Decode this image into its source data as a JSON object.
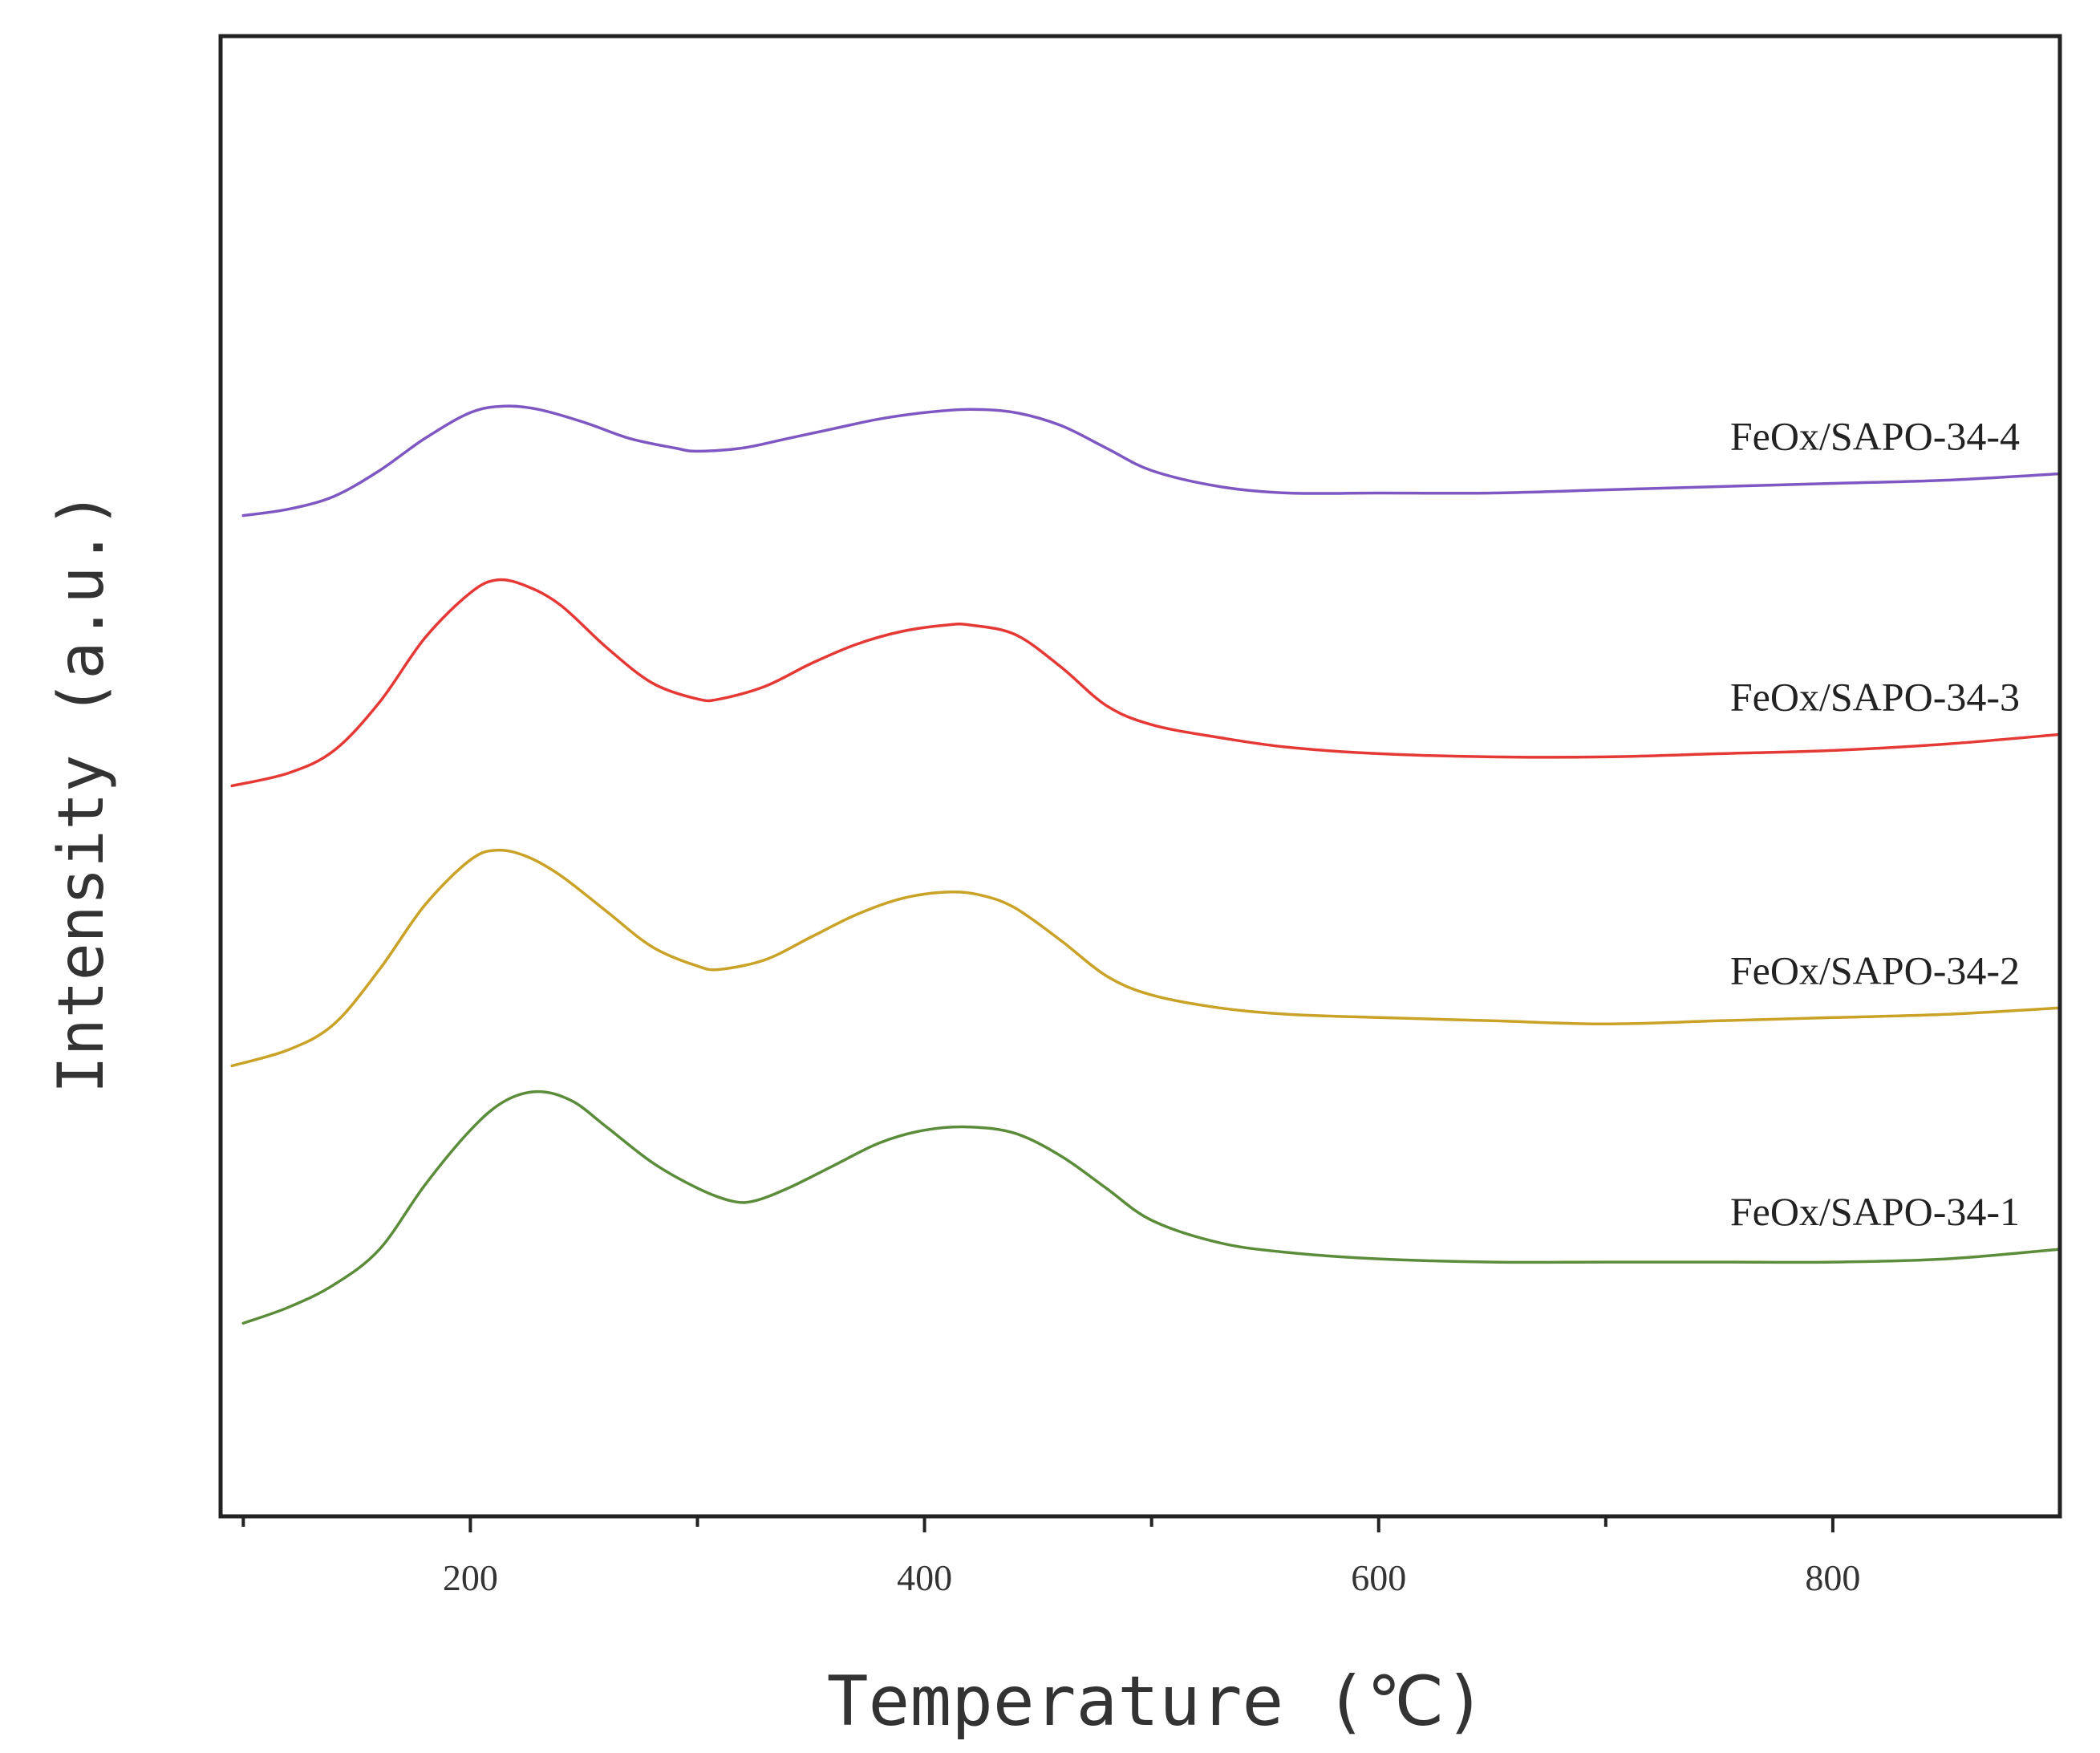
{
  "chart_data": {
    "type": "line",
    "title": "",
    "xlabel": "Temperature (℃)",
    "ylabel": "Intensity (a.u.)",
    "xlim": [
      90,
      900
    ],
    "ylim": [
      -0.25,
      4.35
    ],
    "xticks": [
      200,
      400,
      600,
      800
    ],
    "minor_xticks": [
      100,
      300,
      500,
      700
    ],
    "grid": false,
    "legend": "inline labels at right end of each curve",
    "series": [
      {
        "name": "FeOx/SAPO-34-4",
        "color": "#7e57c2",
        "x": [
          100,
          120,
          140,
          160,
          180,
          200,
          215,
          230,
          250,
          270,
          290,
          300,
          320,
          340,
          360,
          380,
          400,
          420,
          440,
          460,
          480,
          500,
          530,
          560,
          600,
          650,
          700,
          750,
          800,
          850,
          900
        ],
        "y": [
          2.86,
          2.88,
          2.92,
          3.0,
          3.1,
          3.18,
          3.2,
          3.19,
          3.15,
          3.1,
          3.07,
          3.06,
          3.07,
          3.1,
          3.13,
          3.16,
          3.18,
          3.19,
          3.18,
          3.14,
          3.07,
          3.0,
          2.95,
          2.93,
          2.93,
          2.93,
          2.94,
          2.95,
          2.96,
          2.97,
          2.99
        ]
      },
      {
        "name": "FeOx/SAPO-34-3",
        "color": "#e53935",
        "x": [
          95,
          120,
          140,
          160,
          180,
          200,
          212,
          225,
          240,
          260,
          280,
          300,
          310,
          330,
          350,
          370,
          390,
          410,
          420,
          440,
          460,
          480,
          500,
          530,
          560,
          600,
          650,
          700,
          750,
          800,
          850,
          900
        ],
        "y": [
          2.02,
          2.06,
          2.13,
          2.28,
          2.48,
          2.62,
          2.66,
          2.64,
          2.58,
          2.45,
          2.34,
          2.29,
          2.29,
          2.33,
          2.4,
          2.46,
          2.5,
          2.52,
          2.52,
          2.49,
          2.39,
          2.27,
          2.21,
          2.17,
          2.14,
          2.12,
          2.11,
          2.11,
          2.12,
          2.13,
          2.15,
          2.18
        ]
      },
      {
        "name": "FeOx/SAPO-34-2",
        "color": "#c9a227",
        "x": [
          95,
          120,
          140,
          160,
          180,
          200,
          212,
          225,
          240,
          260,
          280,
          300,
          310,
          330,
          350,
          370,
          390,
          410,
          425,
          440,
          460,
          480,
          500,
          530,
          560,
          600,
          650,
          700,
          750,
          800,
          850,
          900
        ],
        "y": [
          1.15,
          1.2,
          1.28,
          1.45,
          1.65,
          1.79,
          1.82,
          1.8,
          1.74,
          1.63,
          1.52,
          1.46,
          1.45,
          1.48,
          1.55,
          1.62,
          1.67,
          1.69,
          1.68,
          1.64,
          1.54,
          1.43,
          1.37,
          1.33,
          1.31,
          1.3,
          1.29,
          1.28,
          1.29,
          1.3,
          1.31,
          1.33
        ]
      },
      {
        "name": "FeOx/SAPO-34-1",
        "color": "#5b8c3a",
        "x": [
          100,
          120,
          140,
          160,
          180,
          200,
          215,
          230,
          245,
          260,
          280,
          300,
          315,
          325,
          340,
          360,
          380,
          400,
          420,
          440,
          460,
          480,
          500,
          530,
          560,
          600,
          650,
          700,
          750,
          800,
          850,
          900
        ],
        "y": [
          0.35,
          0.4,
          0.47,
          0.58,
          0.78,
          0.95,
          1.04,
          1.07,
          1.04,
          0.96,
          0.85,
          0.77,
          0.73,
          0.73,
          0.77,
          0.84,
          0.91,
          0.95,
          0.96,
          0.94,
          0.87,
          0.77,
          0.67,
          0.6,
          0.57,
          0.55,
          0.54,
          0.54,
          0.54,
          0.54,
          0.55,
          0.58
        ]
      }
    ]
  }
}
